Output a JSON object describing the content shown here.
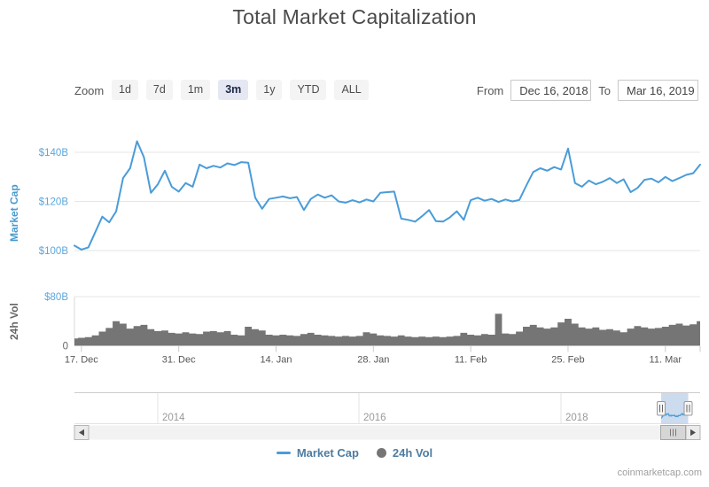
{
  "header": {
    "title": "Total Market Capitalization"
  },
  "toolbar": {
    "zoom_label": "Zoom",
    "zoom_options": [
      "1d",
      "7d",
      "1m",
      "3m",
      "1y",
      "YTD",
      "ALL"
    ],
    "selected_zoom": "3m",
    "from_label": "From",
    "from_value": "Dec 16, 2018",
    "to_label": "To",
    "to_value": "Mar 16, 2019"
  },
  "colors": {
    "market_cap_line": "#4a9cd8",
    "axis_blue_label": "#5ba7dc",
    "axis_blue_title": "#4a9ace",
    "volume_fill": "#757575",
    "gray_text": "#555555",
    "grid_line": "#e6e6e6",
    "year_label": "#999999",
    "navigator_mask": "rgba(110,152,205,0.35)",
    "selected_zoom_bg": "#e5e8f3"
  },
  "chart_data": [
    {
      "type": "line",
      "name": "Market Cap",
      "ylabel": "Market Cap",
      "unit": "USD billions",
      "ylim": [
        96,
        150
      ],
      "yticks": [
        {
          "value": 100,
          "label": "$100B"
        },
        {
          "value": 120,
          "label": "$120B"
        },
        {
          "value": 140,
          "label": "$140B"
        }
      ],
      "x_start": "Dec 16, 2018",
      "x_end": "Mar 16, 2019",
      "xticks": [
        {
          "day": 1,
          "label": "17. Dec"
        },
        {
          "day": 15,
          "label": "31. Dec"
        },
        {
          "day": 29,
          "label": "14. Jan"
        },
        {
          "day": 43,
          "label": "28. Jan"
        },
        {
          "day": 57,
          "label": "11. Feb"
        },
        {
          "day": 71,
          "label": "25. Feb"
        },
        {
          "day": 85,
          "label": "11. Mar"
        }
      ],
      "values": [
        102.0,
        100.4,
        101.3,
        107.5,
        113.8,
        111.5,
        116.0,
        129.5,
        133.5,
        144.5,
        138.0,
        123.5,
        127.0,
        132.5,
        126.0,
        124.0,
        127.5,
        126.0,
        135.0,
        133.5,
        134.5,
        133.8,
        135.5,
        134.8,
        136.0,
        135.8,
        121.5,
        117.0,
        121.0,
        121.5,
        122.0,
        121.3,
        121.8,
        116.5,
        121.0,
        122.8,
        121.5,
        122.5,
        120.0,
        119.5,
        120.5,
        119.6,
        120.8,
        120.0,
        123.5,
        123.8,
        124.0,
        113.0,
        112.5,
        111.8,
        114.0,
        116.5,
        112.0,
        111.8,
        113.5,
        116.0,
        112.5,
        120.5,
        121.5,
        120.3,
        121.0,
        119.8,
        120.8,
        120.0,
        120.6,
        126.5,
        132.0,
        133.5,
        132.5,
        134.0,
        133.0,
        141.5,
        127.5,
        126.0,
        128.5,
        127.0,
        128.0,
        129.5,
        127.5,
        129.0,
        123.8,
        125.5,
        128.8,
        129.3,
        127.8,
        130.0,
        128.3,
        129.5,
        130.8,
        131.5,
        135.0
      ]
    },
    {
      "type": "area",
      "name": "24h Vol",
      "ylabel": "24h Vol",
      "unit": "USD billions",
      "ylim": [
        0,
        87
      ],
      "yticks": [
        {
          "value": 0,
          "label": "0"
        },
        {
          "value": 80,
          "label": "$80B"
        }
      ],
      "values": [
        12,
        13,
        14,
        17,
        23,
        29,
        40,
        36,
        28,
        32,
        34,
        27,
        24,
        25,
        21,
        20,
        22,
        20,
        19,
        23,
        24,
        22,
        24,
        18,
        17,
        31,
        27,
        25,
        18,
        17,
        18,
        17,
        16,
        19,
        21,
        18,
        17,
        16,
        15,
        16,
        15,
        16,
        22,
        20,
        17,
        16,
        15,
        17,
        15,
        14,
        15,
        14,
        15,
        14,
        15,
        16,
        21,
        18,
        17,
        19,
        18,
        52,
        20,
        19,
        23,
        31,
        34,
        30,
        28,
        30,
        38,
        44,
        36,
        30,
        28,
        30,
        26,
        27,
        25,
        22,
        28,
        32,
        30,
        28,
        29,
        31,
        34,
        36,
        33,
        35,
        40
      ]
    },
    {
      "type": "navigator",
      "year_labels": [
        "2014",
        "2016",
        "2018"
      ],
      "selected_range_start": "Dec 16, 2018",
      "selected_range_end": "Mar 16, 2019"
    }
  ],
  "legend": {
    "items": [
      {
        "label": "Market Cap",
        "marker": "line",
        "color": "#4a9cd8"
      },
      {
        "label": "24h Vol",
        "marker": "circle",
        "color": "#757575"
      }
    ]
  },
  "footer": {
    "watermark": "coinmarketcap.com"
  }
}
